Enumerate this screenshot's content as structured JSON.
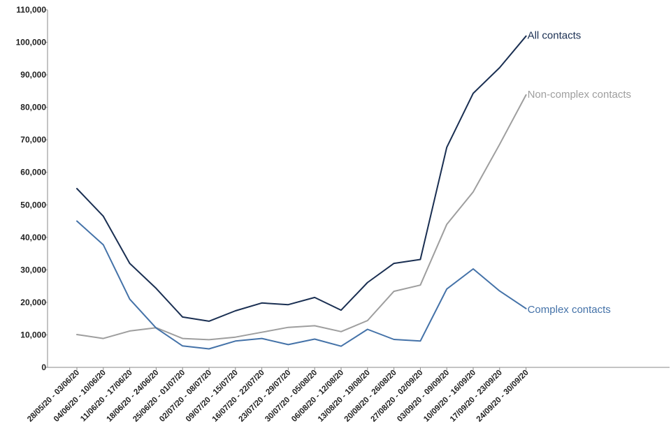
{
  "chart_data": {
    "type": "line",
    "title": "",
    "xlabel": "",
    "ylabel": "",
    "ylim": [
      0,
      110000
    ],
    "y_ticks": [
      0,
      10000,
      20000,
      30000,
      40000,
      50000,
      60000,
      70000,
      80000,
      90000,
      100000,
      110000
    ],
    "y_tick_labels": [
      "0",
      "10,000",
      "20,000",
      "30,000",
      "40,000",
      "50,000",
      "60,000",
      "70,000",
      "80,000",
      "90,000",
      "100,000",
      "110,000"
    ],
    "grid": false,
    "legend": "direct labels at line ends",
    "categories": [
      "28/05/20 - 03/06/20",
      "04/06/20 - 10/06/20",
      "11/06/20 - 17/06/20",
      "18/06/20 - 24/06/20",
      "25/06/20 - 01/07/20",
      "02/07/20 - 08/07/20",
      "09/07/20 - 15/07/20",
      "16/07/20 - 22/07/20",
      "23/07/20 - 29/07/20",
      "30/07/20 - 05/08/20",
      "06/08/20 - 12/08/20",
      "13/08/20 - 19/08/20",
      "20/08/20 - 26/08/20",
      "27/08/20 - 02/09/20",
      "03/09/20 - 09/09/20",
      "10/09/20 - 16/09/20",
      "17/09/20 - 23/09/20",
      "24/09/20 - 30/09/20"
    ],
    "series": [
      {
        "name": "All contacts",
        "color": "#1a2f52",
        "values": [
          55000,
          46500,
          32000,
          24300,
          15500,
          14200,
          17400,
          19800,
          19300,
          21500,
          17600,
          26100,
          32000,
          33200,
          67700,
          84300,
          92200,
          101900
        ]
      },
      {
        "name": "Non-complex contacts",
        "color": "#9e9e9e",
        "values": [
          10100,
          8900,
          11200,
          12200,
          8900,
          8500,
          9300,
          10800,
          12300,
          12800,
          11000,
          14400,
          23400,
          25300,
          44000,
          54000,
          68600,
          83800
        ]
      },
      {
        "name": "Complex contacts",
        "color": "#4472a8",
        "values": [
          45000,
          37700,
          21000,
          12100,
          6600,
          5700,
          8100,
          8900,
          7000,
          8700,
          6500,
          11700,
          8600,
          8100,
          24100,
          30300,
          23500,
          18100
        ]
      }
    ]
  }
}
